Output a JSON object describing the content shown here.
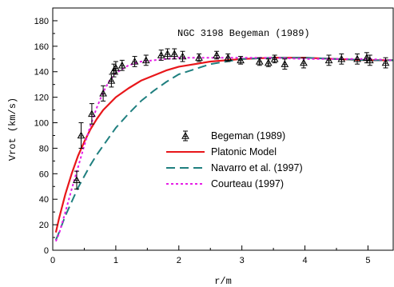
{
  "chart_data": {
    "type": "line",
    "title": "",
    "annotation": "NGC 3198 Begeman (1989)",
    "xlabel": "r/m",
    "ylabel": "Vrot (km/s)",
    "xlim": [
      0,
      5.4
    ],
    "ylim": [
      0,
      190
    ],
    "x_ticks": [
      "0",
      "1",
      "2",
      "3",
      "4",
      "5"
    ],
    "y_ticks": [
      "0",
      "20",
      "40",
      "60",
      "80",
      "100",
      "120",
      "140",
      "160",
      "180"
    ],
    "grid": false,
    "legend_position": "center-left",
    "series": [
      {
        "name": "Begeman (1989)",
        "kind": "scatter-errorbar",
        "marker": "triangle-cross",
        "color": "#000000",
        "x": [
          0.38,
          0.45,
          0.62,
          0.8,
          0.93,
          0.97,
          1.0,
          1.1,
          1.3,
          1.48,
          1.72,
          1.82,
          1.93,
          2.06,
          2.32,
          2.6,
          2.78,
          2.98,
          3.28,
          3.42,
          3.52,
          3.68,
          3.98,
          4.38,
          4.58,
          4.83,
          4.98,
          5.03,
          5.28
        ],
        "y": [
          55,
          90,
          107,
          123,
          133,
          141,
          143,
          145,
          148,
          149,
          153,
          154,
          154,
          152,
          151,
          153,
          151,
          149,
          148,
          147,
          150,
          146,
          147,
          149,
          150,
          150,
          151,
          149,
          147
        ],
        "err": [
          7,
          10,
          8,
          6,
          5,
          5,
          5,
          4,
          4,
          4,
          4,
          4,
          4,
          4,
          3,
          3,
          3,
          3,
          3,
          3,
          3,
          4,
          4,
          4,
          4,
          4,
          4,
          4,
          4
        ]
      },
      {
        "name": "Platonic Model",
        "kind": "line",
        "color": "#e8161a",
        "dash": "solid",
        "x": [
          0.05,
          0.1,
          0.2,
          0.3,
          0.4,
          0.5,
          0.6,
          0.7,
          0.8,
          0.9,
          1.0,
          1.2,
          1.4,
          1.6,
          1.8,
          2.0,
          2.5,
          3.0,
          3.5,
          4.0,
          4.5,
          5.0,
          5.4
        ],
        "y": [
          14,
          25,
          44,
          60,
          74,
          85,
          95,
          103,
          110,
          115,
          120,
          127,
          133,
          137,
          141,
          144,
          148,
          150,
          151,
          151,
          150,
          149,
          149
        ]
      },
      {
        "name": "Navarro et al. (1997)",
        "kind": "line",
        "color": "#1f7f7f",
        "dash": "dashed",
        "x": [
          0.05,
          0.1,
          0.2,
          0.3,
          0.4,
          0.5,
          0.6,
          0.7,
          0.8,
          0.9,
          1.0,
          1.2,
          1.4,
          1.6,
          1.8,
          2.0,
          2.5,
          3.0,
          3.5,
          4.0,
          4.5,
          5.0,
          5.4
        ],
        "y": [
          8,
          14,
          27,
          38,
          49,
          58,
          67,
          75,
          82,
          89,
          96,
          107,
          117,
          125,
          132,
          138,
          146,
          150,
          151,
          151,
          150,
          149,
          149
        ]
      },
      {
        "name": "Courteau (1997)",
        "kind": "line",
        "color": "#e61ee6",
        "dash": "dotted",
        "x": [
          0.05,
          0.1,
          0.2,
          0.3,
          0.4,
          0.5,
          0.6,
          0.7,
          0.8,
          0.9,
          1.0,
          1.2,
          1.4,
          1.6,
          1.8,
          2.0,
          2.5,
          3.0,
          3.5,
          4.0,
          4.5,
          5.0,
          5.4
        ],
        "y": [
          7,
          13,
          30,
          48,
          65,
          82,
          98,
          112,
          124,
          133,
          139,
          145,
          148,
          149,
          150,
          151,
          151,
          151,
          151,
          150,
          150,
          150,
          149
        ]
      }
    ]
  }
}
